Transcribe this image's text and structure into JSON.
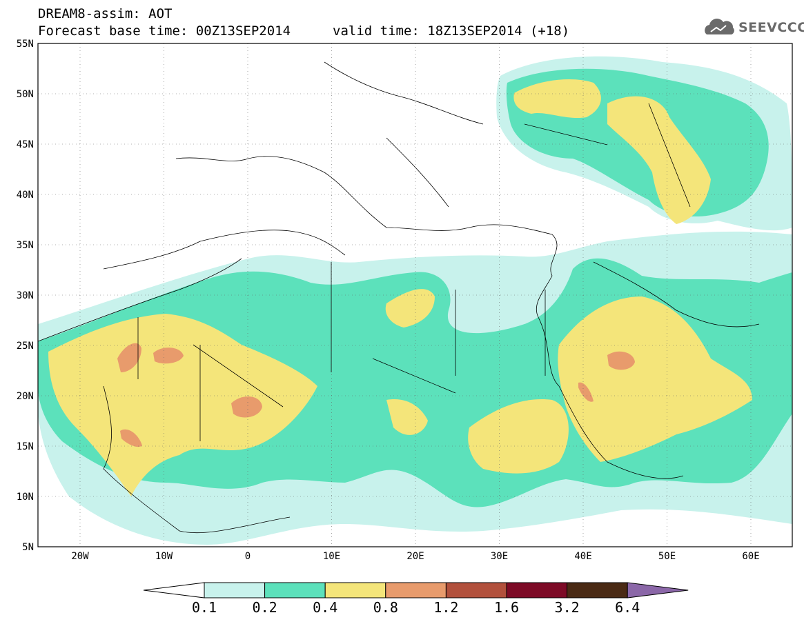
{
  "header": {
    "title": "DREAM8-assim: AOT",
    "base_time": "Forecast base time: 00Z13SEP2014",
    "valid_time": "valid time: 18Z13SEP2014 (+18)",
    "logo_text": "SEEVCCC"
  },
  "map": {
    "lat_labels": [
      "55N",
      "50N",
      "45N",
      "40N",
      "35N",
      "30N",
      "25N",
      "20N",
      "15N",
      "10N",
      "5N"
    ],
    "lon_labels": [
      "20W",
      "10W",
      "0",
      "10E",
      "20E",
      "30E",
      "40E",
      "50E",
      "60E"
    ],
    "gridlines": "dotted"
  },
  "legend": {
    "labels": [
      "0.1",
      "0.2",
      "0.4",
      "0.8",
      "1.2",
      "1.6",
      "3.2",
      "6.4"
    ],
    "colors": [
      "#ffffff",
      "#c8f2ec",
      "#5ce1bb",
      "#f4e57a",
      "#e89b6c",
      "#b2503c",
      "#7d0a26",
      "#4a2a14",
      "#8b67a8"
    ]
  }
}
